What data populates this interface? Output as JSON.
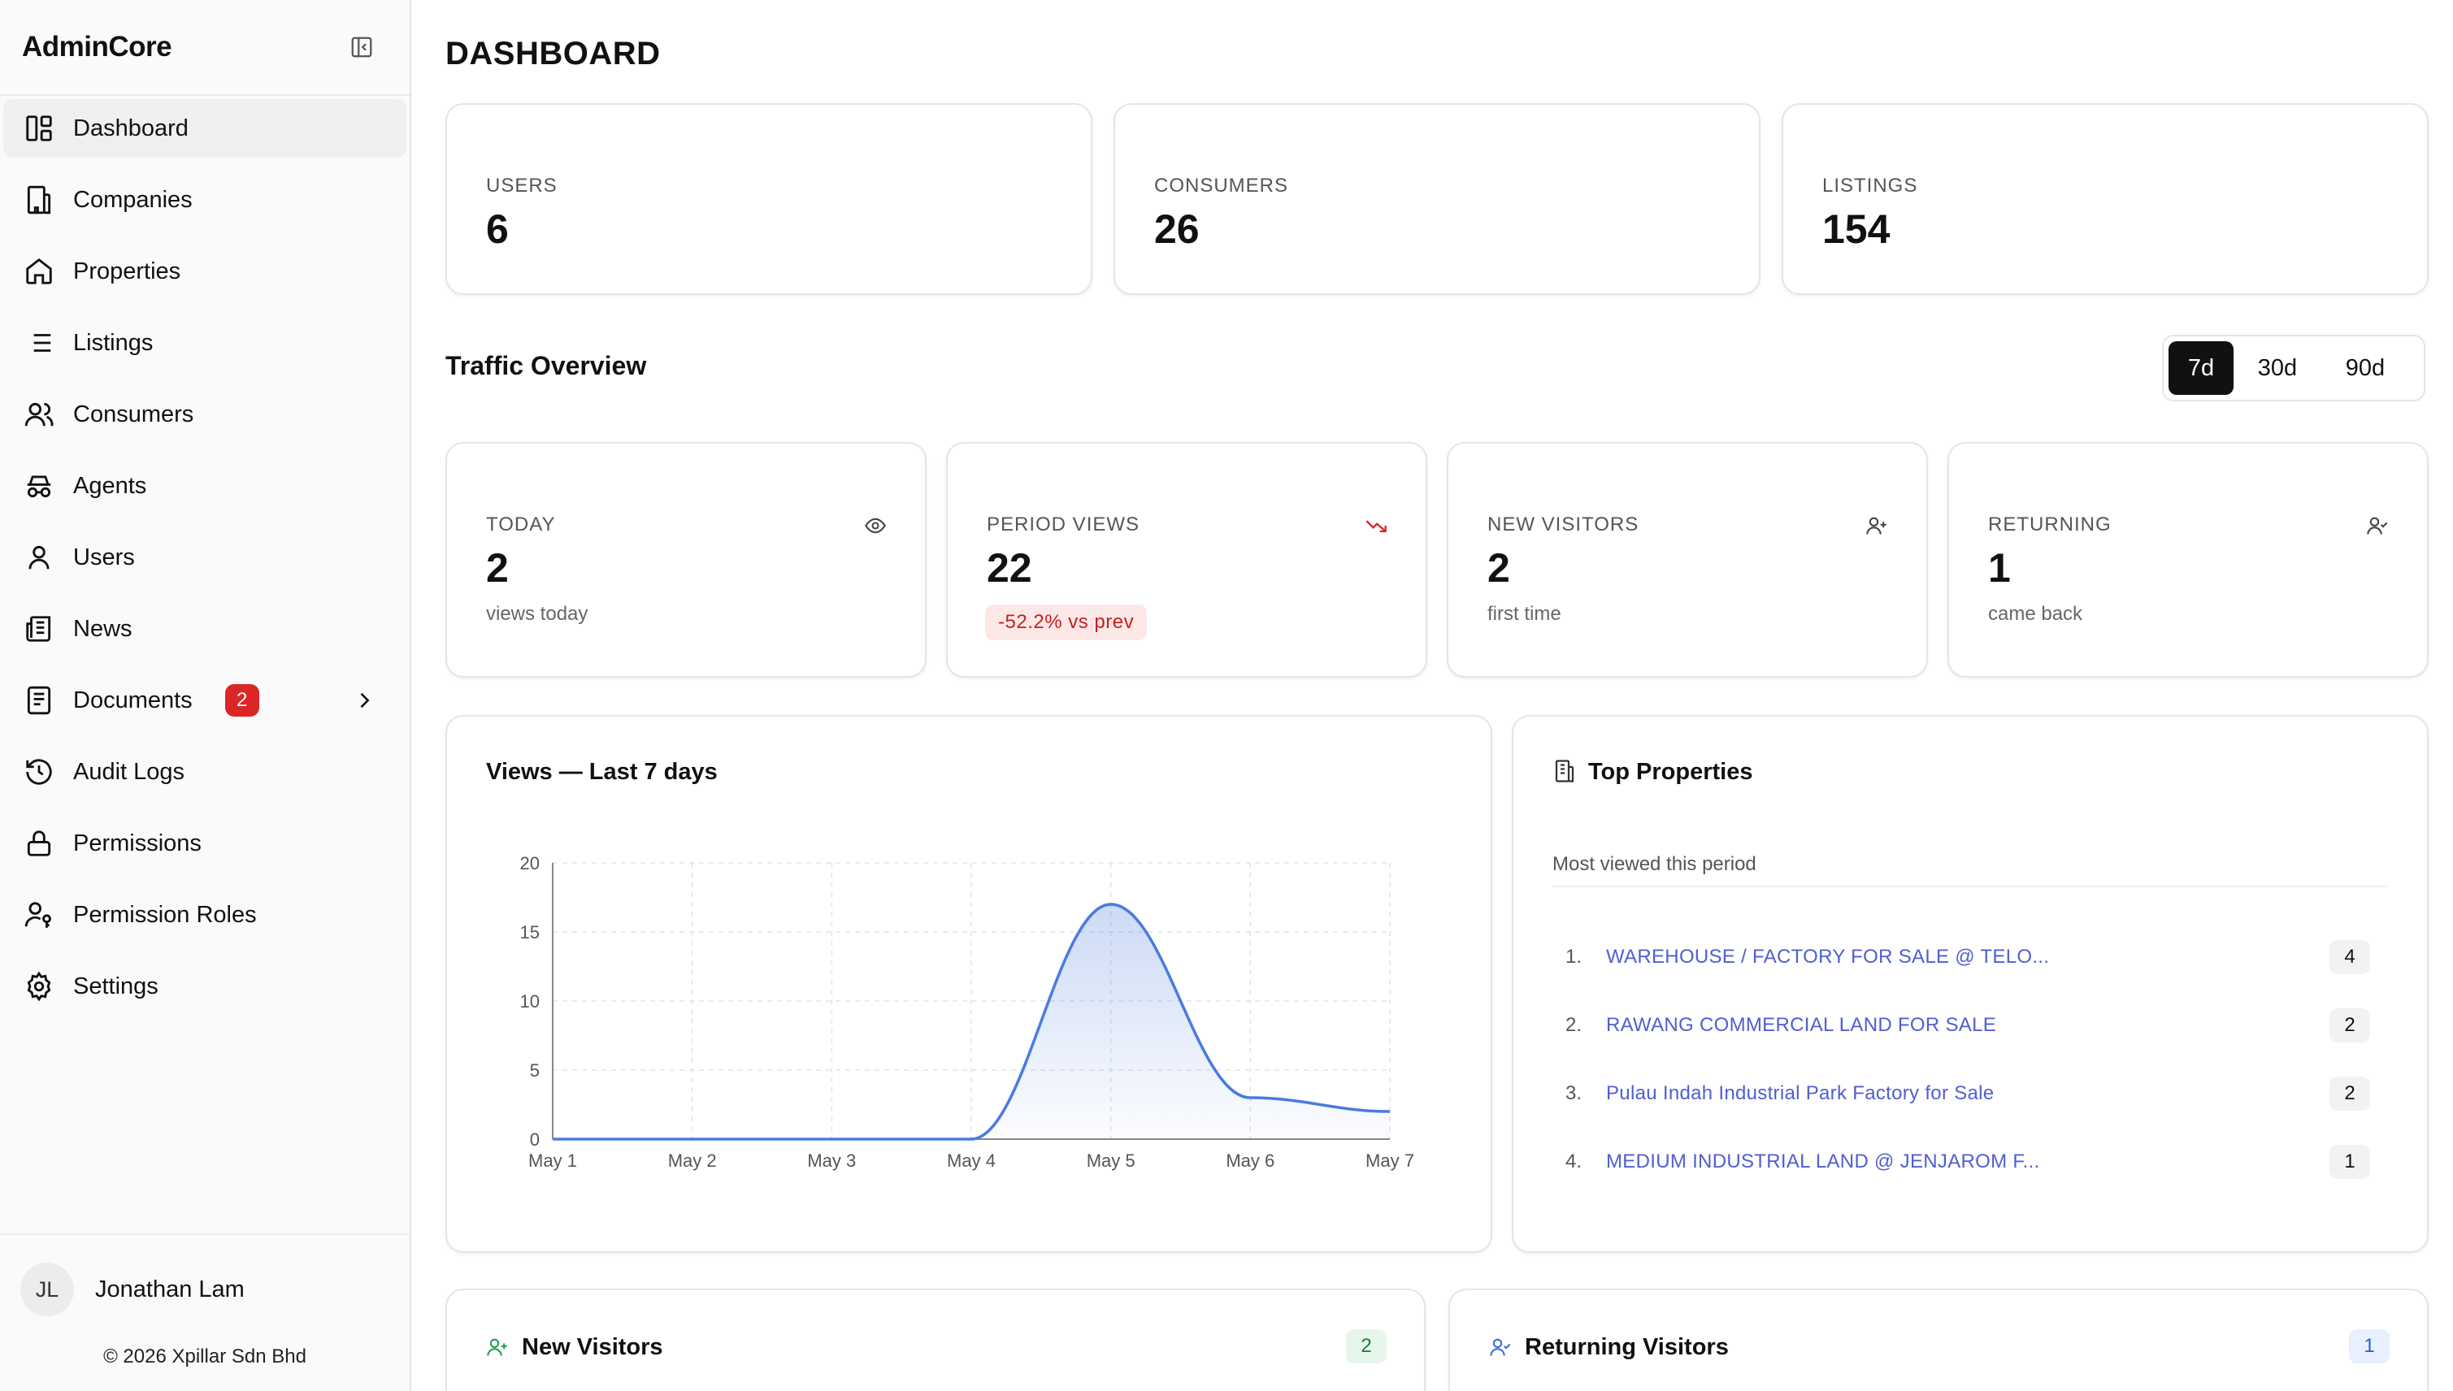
{
  "app": {
    "name": "AdminCore"
  },
  "sidebar": {
    "items": [
      {
        "label": "Dashboard",
        "icon": "dashboard-icon",
        "active": true
      },
      {
        "label": "Companies",
        "icon": "building-icon"
      },
      {
        "label": "Properties",
        "icon": "home-icon"
      },
      {
        "label": "Listings",
        "icon": "list-icon"
      },
      {
        "label": "Consumers",
        "icon": "users-icon"
      },
      {
        "label": "Agents",
        "icon": "agent-icon"
      },
      {
        "label": "Users",
        "icon": "user-icon"
      },
      {
        "label": "News",
        "icon": "newspaper-icon"
      },
      {
        "label": "Documents",
        "icon": "document-icon",
        "badge": "2"
      },
      {
        "label": "Audit Logs",
        "icon": "history-icon"
      },
      {
        "label": "Permissions",
        "icon": "lock-icon"
      },
      {
        "label": "Permission Roles",
        "icon": "user-key-icon"
      },
      {
        "label": "Settings",
        "icon": "gear-icon"
      }
    ],
    "user": {
      "initials": "JL",
      "name": "Jonathan Lam"
    },
    "copyright": "© 2026 Xpillar Sdn Bhd"
  },
  "page": {
    "title": "DASHBOARD"
  },
  "stats": {
    "users": {
      "label": "USERS",
      "value": "6"
    },
    "consumers": {
      "label": "CONSUMERS",
      "value": "26"
    },
    "listings": {
      "label": "LISTINGS",
      "value": "154"
    }
  },
  "traffic": {
    "title": "Traffic Overview",
    "ranges": [
      "7d",
      "30d",
      "90d"
    ],
    "active_range": "7d",
    "today": {
      "label": "TODAY",
      "value": "2",
      "sub": "views today",
      "icon": "eye-icon"
    },
    "period_views": {
      "label": "PERIOD VIEWS",
      "value": "22",
      "change": "-52.2% vs prev",
      "icon": "trending-down-icon"
    },
    "new_visitors": {
      "label": "NEW VISITORS",
      "value": "2",
      "sub": "first time",
      "icon": "user-plus-icon"
    },
    "returning": {
      "label": "RETURNING",
      "value": "1",
      "sub": "came back",
      "icon": "user-check-icon"
    }
  },
  "views_chart": {
    "title": "Views — Last 7 days"
  },
  "chart_data": {
    "type": "area",
    "title": "Views — Last 7 days",
    "categories": [
      "May 1",
      "May 2",
      "May 3",
      "May 4",
      "May 5",
      "May 6",
      "May 7"
    ],
    "values": [
      0,
      0,
      0,
      0,
      17,
      3,
      2
    ],
    "ylim": [
      0,
      20
    ],
    "yticks": [
      "0",
      "5",
      "10",
      "15",
      "20"
    ],
    "grid": true,
    "color": "#4a7be0"
  },
  "top_properties": {
    "title": "Top Properties",
    "subtitle": "Most viewed this period",
    "items": [
      {
        "rank": "1.",
        "name": "WAREHOUSE / FACTORY FOR SALE @ TELO...",
        "count": "4"
      },
      {
        "rank": "2.",
        "name": "RAWANG COMMERCIAL LAND FOR SALE",
        "count": "2"
      },
      {
        "rank": "3.",
        "name": "Pulau Indah Industrial Park Factory for Sale",
        "count": "2"
      },
      {
        "rank": "4.",
        "name": "MEDIUM INDUSTRIAL LAND @ JENJAROM F...",
        "count": "1"
      }
    ]
  },
  "new_visitors_panel": {
    "title": "New Visitors",
    "count": "2"
  },
  "returning_visitors_panel": {
    "title": "Returning Visitors",
    "count": "1"
  },
  "colors": {
    "accent": "#4a7be0",
    "danger": "#dc2626",
    "link": "#4f5fd0"
  }
}
